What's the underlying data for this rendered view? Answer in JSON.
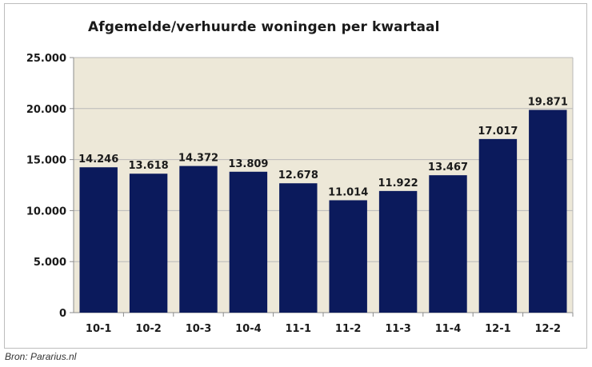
{
  "source": "Bron: Pararius.nl",
  "colors": {
    "bar": "#0b1a5c",
    "plot_background": "#ede8d8",
    "gridline": "#b9b9b9",
    "axis": "#8c8c8c"
  },
  "chart_data": {
    "type": "bar",
    "title": "Afgemelde/verhuurde woningen per kwartaal",
    "xlabel": "",
    "ylabel": "",
    "ylim": [
      0,
      25000
    ],
    "yticks": [
      0,
      5000,
      10000,
      15000,
      20000,
      25000
    ],
    "ytick_labels": [
      "0",
      "5.000",
      "10.000",
      "15.000",
      "20.000",
      "25.000"
    ],
    "grid": true,
    "legend": "none",
    "categories": [
      "10-1",
      "10-2",
      "10-3",
      "10-4",
      "11-1",
      "11-2",
      "11-3",
      "11-4",
      "12-1",
      "12-2"
    ],
    "values": [
      14246,
      13618,
      14372,
      13809,
      12678,
      11014,
      11922,
      13467,
      17017,
      19871
    ],
    "value_labels": [
      "14.246",
      "13.618",
      "14.372",
      "13.809",
      "12.678",
      "11.014",
      "11.922",
      "13.467",
      "17.017",
      "19.871"
    ]
  }
}
